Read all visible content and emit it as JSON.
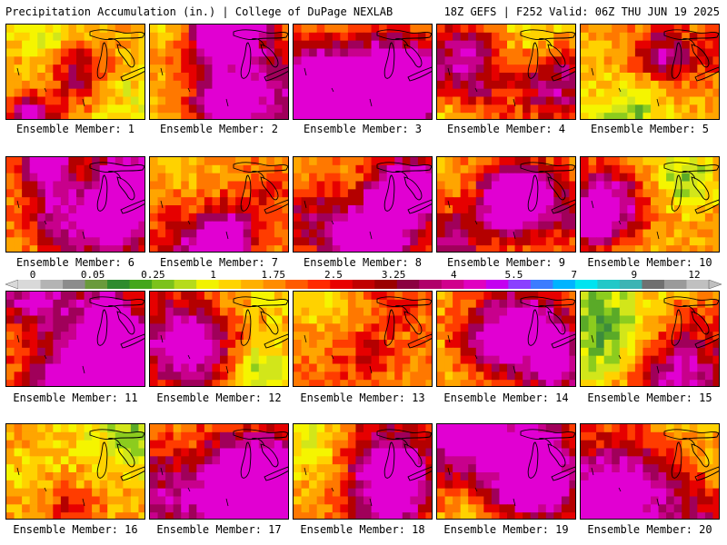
{
  "header": {
    "title_left": "Precipitation Accumulation (in.) | College of DuPage NEXLAB",
    "title_right": "18Z GEFS | F252 Valid: 06Z THU JUN 19 2025"
  },
  "colorbar": {
    "units": "in.",
    "tick_labels": [
      "0",
      "0.05",
      "0.25",
      "1",
      "1.75",
      "2.5",
      "3.25",
      "4",
      "5.5",
      "7",
      "9",
      "12"
    ],
    "colors": [
      "#d9d9d9",
      "#b4b4b4",
      "#8c8c8c",
      "#6a9a3c",
      "#2e8b2e",
      "#44a61c",
      "#7cc21c",
      "#b6db1c",
      "#f2f200",
      "#ffd400",
      "#ffb000",
      "#ff8c00",
      "#ff5a00",
      "#ff2a00",
      "#e80000",
      "#c00000",
      "#9a0000",
      "#8b0040",
      "#b0006a",
      "#d0008c",
      "#e000c0",
      "#c400f0",
      "#8a40ff",
      "#3c7cff",
      "#00b4ff",
      "#00e4f0",
      "#22c8c8",
      "#3cb4b4",
      "#707070",
      "#9a9a9a",
      "#c0c0c0"
    ]
  },
  "panels": [
    {
      "caption": "Ensemble Member: 1"
    },
    {
      "caption": "Ensemble Member: 2"
    },
    {
      "caption": "Ensemble Member: 3"
    },
    {
      "caption": "Ensemble Member: 4"
    },
    {
      "caption": "Ensemble Member: 5"
    },
    {
      "caption": "Ensemble Member: 6"
    },
    {
      "caption": "Ensemble Member: 7"
    },
    {
      "caption": "Ensemble Member: 8"
    },
    {
      "caption": "Ensemble Member: 9"
    },
    {
      "caption": "Ensemble Member: 10"
    },
    {
      "caption": "Ensemble Member: 11"
    },
    {
      "caption": "Ensemble Member: 12"
    },
    {
      "caption": "Ensemble Member: 13"
    },
    {
      "caption": "Ensemble Member: 14"
    },
    {
      "caption": "Ensemble Member: 15"
    },
    {
      "caption": "Ensemble Member: 16"
    },
    {
      "caption": "Ensemble Member: 17"
    },
    {
      "caption": "Ensemble Member: 18"
    },
    {
      "caption": "Ensemble Member: 19"
    },
    {
      "caption": "Ensemble Member: 20"
    }
  ]
}
